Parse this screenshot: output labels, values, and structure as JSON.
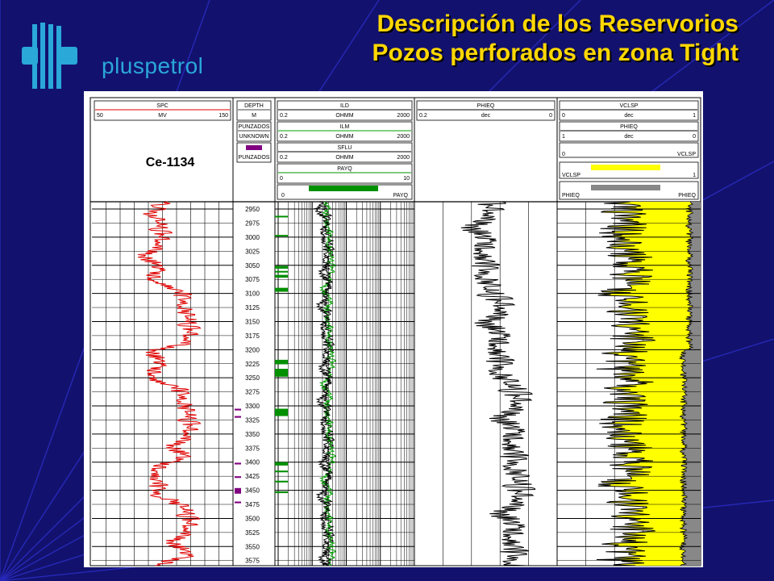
{
  "title": {
    "line1": "Descripción de los Reservorios",
    "line2": "Pozos perforados en zona Tight"
  },
  "logo": {
    "text": "pluspetrol",
    "icon": "pluspetrol-logo-icon"
  },
  "colors": {
    "background": "#12126e",
    "title": "#ffd700",
    "logo": "#2aa8d8",
    "spc": "#e00000",
    "ild": "#000000",
    "ilm": "#00a000",
    "payq": "#009000",
    "punzados": "#800080",
    "vclsp": "#ffff00",
    "phieq": "#888888"
  },
  "chart_data": {
    "type": "line",
    "well_name": "Ce-1134",
    "depth_track": {
      "name": "DEPTH",
      "unit": "M",
      "ticks": [
        2950,
        2975,
        3000,
        3025,
        3050,
        3075,
        3100,
        3125,
        3150,
        3175,
        3200,
        3225,
        3250,
        3275,
        3300,
        3325,
        3350,
        3375,
        3400,
        3425,
        3450,
        3475,
        3500,
        3525,
        3550,
        3575
      ]
    },
    "depth_range": [
      2937,
      3584
    ],
    "tracks": [
      {
        "headers": [
          {
            "name": "SPC",
            "unit": "MV",
            "min": "50",
            "max": "150",
            "color": "#e00000"
          }
        ]
      },
      {
        "headers": [
          {
            "name": "PUNZADOS",
            "unit": "UNKNOWN",
            "min": "",
            "max": "",
            "color": "#800080"
          },
          {
            "name": "PUNZADOS",
            "unit": "",
            "min": "",
            "max": "",
            "color": "#800080"
          }
        ]
      },
      {
        "headers": [
          {
            "name": "ILD",
            "unit": "OHMM",
            "min": "0.2",
            "max": "2000",
            "color": "#000000"
          },
          {
            "name": "ILM",
            "unit": "OHMM",
            "min": "0.2",
            "max": "2000",
            "color": "#00a000"
          },
          {
            "name": "SFLU",
            "unit": "OHMM",
            "min": "0.2",
            "max": "2000",
            "color": "#000000"
          },
          {
            "name": "PAYQ",
            "unit": "",
            "min": "0",
            "max": "10",
            "color": "#009000"
          },
          {
            "name": "",
            "unit": "",
            "min": "0",
            "max": "PAYQ",
            "color": "#009000"
          }
        ]
      },
      {
        "headers": [
          {
            "name": "PHIEQ",
            "unit": "dec",
            "min": "0.2",
            "max": "0",
            "color": "#000000"
          }
        ]
      },
      {
        "headers": [
          {
            "name": "VCLSP",
            "unit": "dec",
            "min": "0",
            "max": "1",
            "color": "#000000"
          },
          {
            "name": "PHIEQ",
            "unit": "dec",
            "min": "1",
            "max": "0",
            "color": "#000000"
          },
          {
            "name": "",
            "unit": "",
            "min": "0",
            "max": "VCLSP",
            "color": "#000000"
          },
          {
            "name": "",
            "unit": "",
            "min": "VCLSP",
            "max": "1",
            "color": "#ffff00"
          },
          {
            "name": "",
            "unit": "",
            "min": "PHIEQ",
            "max": "PHIEQ",
            "color": "#888888"
          }
        ]
      }
    ],
    "perforations": [
      {
        "top": 3305,
        "bottom": 3308
      },
      {
        "top": 3318,
        "bottom": 3321
      },
      {
        "top": 3401,
        "bottom": 3404
      },
      {
        "top": 3425,
        "bottom": 3428
      },
      {
        "top": 3446,
        "bottom": 3456
      },
      {
        "top": 3470,
        "bottom": 3473
      }
    ],
    "pay_zones": [
      {
        "top": 2962,
        "bottom": 2964
      },
      {
        "top": 2996,
        "bottom": 2998
      },
      {
        "top": 3051,
        "bottom": 3056
      },
      {
        "top": 3060,
        "bottom": 3062
      },
      {
        "top": 3067,
        "bottom": 3072
      },
      {
        "top": 3090,
        "bottom": 3097
      },
      {
        "top": 3218,
        "bottom": 3226
      },
      {
        "top": 3234,
        "bottom": 3248
      },
      {
        "top": 3305,
        "bottom": 3318
      },
      {
        "top": 3400,
        "bottom": 3406
      },
      {
        "top": 3415,
        "bottom": 3418
      },
      {
        "top": 3433,
        "bottom": 3436
      },
      {
        "top": 3452,
        "bottom": 3455
      }
    ]
  }
}
